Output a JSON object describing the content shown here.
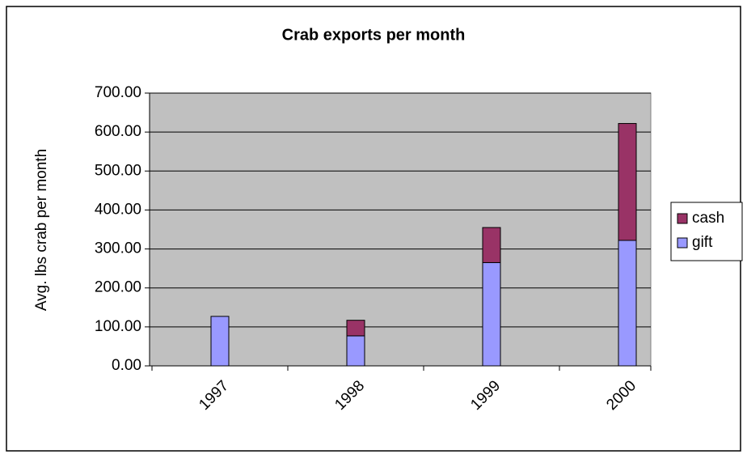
{
  "chart_data": {
    "type": "stacked-bar",
    "title": "Crab exports per month",
    "y_label": "Avg. lbs crab per month",
    "categories": [
      "1997",
      "1998",
      "1999",
      "2000"
    ],
    "series": [
      {
        "name": "gift",
        "color": "#9999ff",
        "values": [
          127,
          77,
          265,
          322
        ]
      },
      {
        "name": "cash",
        "color": "#993366",
        "values": [
          0,
          40,
          90,
          300
        ]
      }
    ],
    "ylim": [
      0,
      700
    ],
    "yticks": [
      {
        "value": 0,
        "label": "0.00"
      },
      {
        "value": 100,
        "label": "100.00"
      },
      {
        "value": 200,
        "label": "200.00"
      },
      {
        "value": 300,
        "label": "300.00"
      },
      {
        "value": 400,
        "label": "400.00"
      },
      {
        "value": 500,
        "label": "500.00"
      },
      {
        "value": 600,
        "label": "600.00"
      },
      {
        "value": 700,
        "label": "700.00"
      }
    ],
    "grid": true,
    "plot_background": "#c0c0c0",
    "legend": "right"
  }
}
